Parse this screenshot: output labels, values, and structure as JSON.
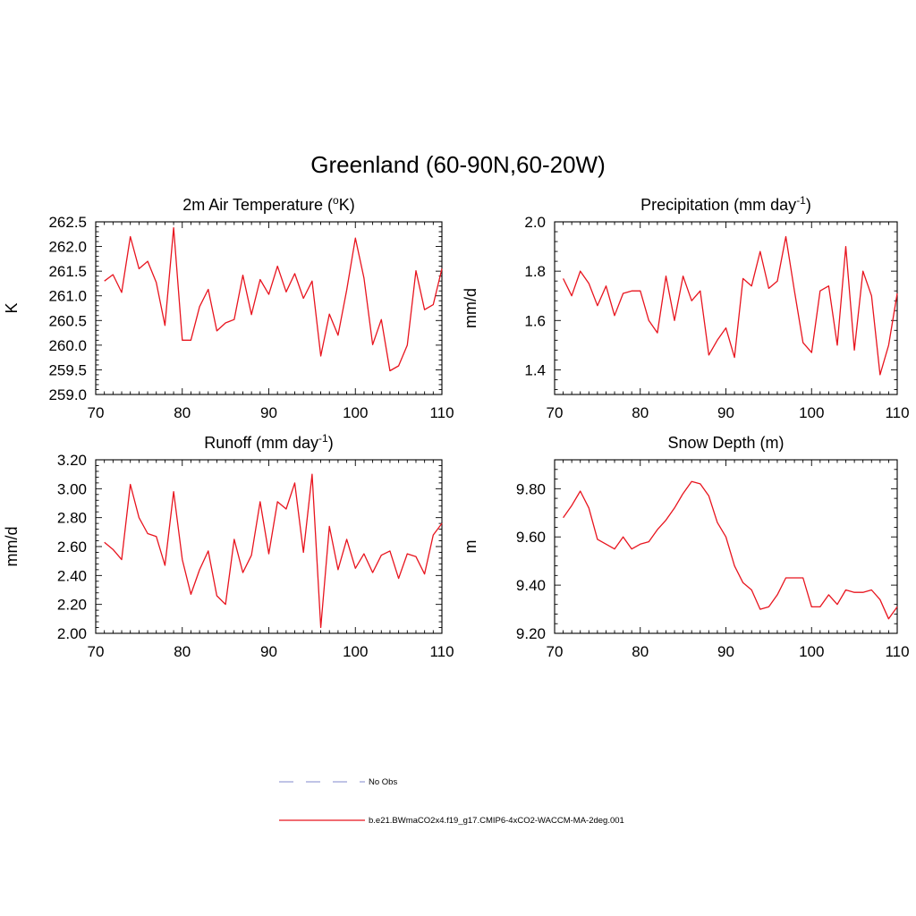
{
  "figure": {
    "title": "Greenland (60-90N,60-20W)"
  },
  "colors": {
    "model_line": "#e8141e",
    "obs_line": "#9aa0d6",
    "axis": "#000000"
  },
  "chart_data": [
    {
      "type": "line",
      "title": "2m Air Temperature (",
      "title_sup": "o",
      "title_tail": "K)",
      "ylabel": "K",
      "xlim": [
        70,
        110
      ],
      "ylim": [
        259.0,
        262.5
      ],
      "xticks": [
        "70",
        "80",
        "90",
        "100",
        "110"
      ],
      "yticks": [
        "259.0",
        "259.5",
        "260.0",
        "260.5",
        "261.0",
        "261.5",
        "262.0",
        "262.5"
      ],
      "x": [
        71,
        72,
        73,
        74,
        75,
        76,
        77,
        78,
        79,
        80,
        81,
        82,
        83,
        84,
        85,
        86,
        87,
        88,
        89,
        90,
        91,
        92,
        93,
        94,
        95,
        96,
        97,
        98,
        99,
        100,
        101,
        102,
        103,
        104,
        105,
        106,
        107,
        108,
        109,
        110
      ],
      "values": [
        261.3,
        261.43,
        261.07,
        262.2,
        261.55,
        261.7,
        261.27,
        260.4,
        262.38,
        260.1,
        260.1,
        260.78,
        261.13,
        260.29,
        260.45,
        260.52,
        261.42,
        260.62,
        261.33,
        261.03,
        261.6,
        261.08,
        261.45,
        260.95,
        261.3,
        259.78,
        260.63,
        260.2,
        261.12,
        262.17,
        261.36,
        260.01,
        260.52,
        259.48,
        259.58,
        260.0,
        261.51,
        260.72,
        260.82,
        261.55
      ]
    },
    {
      "type": "line",
      "title": "Precipitation (mm day",
      "title_sup": "-1",
      "title_tail": ")",
      "ylabel": "mm/d",
      "xlim": [
        70,
        110
      ],
      "ylim": [
        1.3,
        2.0
      ],
      "xticks": [
        "70",
        "80",
        "90",
        "100",
        "110"
      ],
      "yticks": [
        "1.4",
        "1.6",
        "1.8",
        "2.0"
      ],
      "ytick_values": [
        1.4,
        1.6,
        1.8,
        2.0
      ],
      "x": [
        71,
        72,
        73,
        74,
        75,
        76,
        77,
        78,
        79,
        80,
        81,
        82,
        83,
        84,
        85,
        86,
        87,
        88,
        89,
        90,
        91,
        92,
        93,
        94,
        95,
        96,
        97,
        98,
        99,
        100,
        101,
        102,
        103,
        104,
        105,
        106,
        107,
        108,
        109,
        110
      ],
      "values": [
        1.77,
        1.7,
        1.8,
        1.75,
        1.66,
        1.74,
        1.62,
        1.71,
        1.72,
        1.72,
        1.6,
        1.55,
        1.78,
        1.6,
        1.78,
        1.68,
        1.72,
        1.46,
        1.52,
        1.57,
        1.45,
        1.77,
        1.74,
        1.88,
        1.73,
        1.76,
        1.94,
        1.72,
        1.51,
        1.47,
        1.72,
        1.74,
        1.5,
        1.9,
        1.48,
        1.8,
        1.7,
        1.38,
        1.5,
        1.71
      ]
    },
    {
      "type": "line",
      "title": "Runoff (mm day",
      "title_sup": "-1",
      "title_tail": ")",
      "ylabel": "mm/d",
      "xlim": [
        70,
        110
      ],
      "ylim": [
        2.0,
        3.2
      ],
      "xticks": [
        "70",
        "80",
        "90",
        "100",
        "110"
      ],
      "yticks": [
        "2.00",
        "2.20",
        "2.40",
        "2.60",
        "2.80",
        "3.00",
        "3.20"
      ],
      "x": [
        71,
        72,
        73,
        74,
        75,
        76,
        77,
        78,
        79,
        80,
        81,
        82,
        83,
        84,
        85,
        86,
        87,
        88,
        89,
        90,
        91,
        92,
        93,
        94,
        95,
        96,
        97,
        98,
        99,
        100,
        101,
        102,
        103,
        104,
        105,
        106,
        107,
        108,
        109,
        110
      ],
      "values": [
        2.63,
        2.58,
        2.51,
        3.03,
        2.8,
        2.69,
        2.67,
        2.47,
        2.98,
        2.51,
        2.27,
        2.44,
        2.57,
        2.26,
        2.2,
        2.65,
        2.42,
        2.54,
        2.91,
        2.55,
        2.91,
        2.86,
        3.04,
        2.56,
        3.1,
        2.04,
        2.74,
        2.44,
        2.65,
        2.45,
        2.55,
        2.42,
        2.54,
        2.57,
        2.38,
        2.55,
        2.53,
        2.41,
        2.68,
        2.76
      ]
    },
    {
      "type": "line",
      "title": "Snow Depth (m)",
      "title_sup": "",
      "title_tail": "",
      "ylabel": "m",
      "xlim": [
        70,
        110
      ],
      "ylim": [
        9.2,
        9.92
      ],
      "xticks": [
        "70",
        "80",
        "90",
        "100",
        "110"
      ],
      "yticks": [
        "9.20",
        "9.40",
        "9.60",
        "9.80"
      ],
      "ytick_values": [
        9.2,
        9.4,
        9.6,
        9.8
      ],
      "x": [
        71,
        72,
        73,
        74,
        75,
        76,
        77,
        78,
        79,
        80,
        81,
        82,
        83,
        84,
        85,
        86,
        87,
        88,
        89,
        90,
        91,
        92,
        93,
        94,
        95,
        96,
        97,
        98,
        99,
        100,
        101,
        102,
        103,
        104,
        105,
        106,
        107,
        108,
        109,
        110
      ],
      "values": [
        9.68,
        9.73,
        9.79,
        9.72,
        9.59,
        9.57,
        9.55,
        9.6,
        9.55,
        9.57,
        9.58,
        9.63,
        9.67,
        9.72,
        9.78,
        9.83,
        9.82,
        9.77,
        9.66,
        9.6,
        9.48,
        9.41,
        9.38,
        9.3,
        9.31,
        9.36,
        9.43,
        9.43,
        9.43,
        9.31,
        9.31,
        9.36,
        9.32,
        9.38,
        9.37,
        9.37,
        9.38,
        9.34,
        9.26,
        9.31
      ]
    }
  ],
  "legend": {
    "placement": "bottom",
    "items": [
      {
        "label": "No Obs",
        "style": "dashed",
        "color": "#9aa0d6"
      },
      {
        "label": "b.e21.BWmaCO2x4.f19_g17.CMIP6-4xCO2-WACCM-MA-2deg.001",
        "style": "solid",
        "color": "#e8141e"
      }
    ]
  }
}
